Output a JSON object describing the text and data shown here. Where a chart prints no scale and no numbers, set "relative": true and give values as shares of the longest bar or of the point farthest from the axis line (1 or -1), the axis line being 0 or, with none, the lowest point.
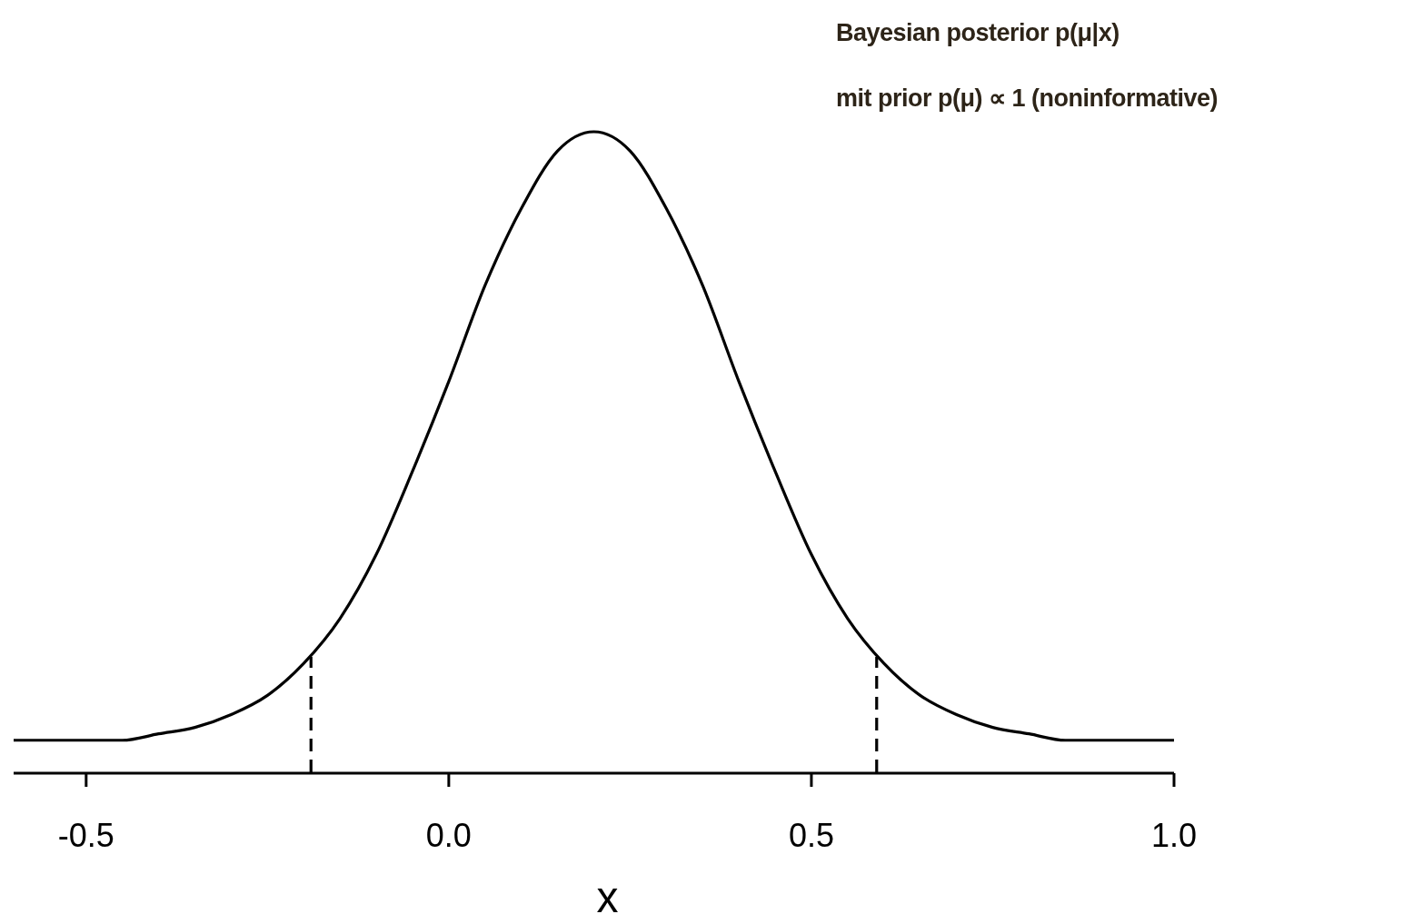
{
  "chart_data": {
    "type": "line",
    "relative": true,
    "xlabel": "x",
    "annotations": [
      "Bayesian posterior p(μ|x)",
      "mit prior p(μ) ∝ 1 (noninformative)"
    ],
    "xlim": [
      -0.6,
      1.0
    ],
    "xticks": [
      {
        "value": -0.5,
        "label": "-0.5"
      },
      {
        "value": 0,
        "label": "0.0"
      },
      {
        "value": 0.5,
        "label": "0.5"
      },
      {
        "value": 1,
        "label": "1.0"
      }
    ],
    "grid": false,
    "marker": "none",
    "series": [
      {
        "color": "#000000",
        "line_style": "solid",
        "x": [
          -0.6,
          -0.55,
          -0.5,
          -0.45,
          -0.4,
          -0.35,
          -0.3,
          -0.25,
          -0.2,
          -0.15,
          -0.1,
          -0.05,
          0,
          0.05,
          0.1,
          0.15,
          0.2,
          0.25,
          0.3,
          0.35,
          0.4,
          0.45,
          0.5,
          0.55,
          0.6,
          0.65,
          0.7,
          0.75,
          0.8,
          0.85,
          0.9,
          0.95,
          1.0
        ],
        "values": [
          0.05,
          0.05,
          0.05,
          0.05,
          0.06,
          0.07,
          0.09,
          0.12,
          0.17,
          0.24,
          0.34,
          0.47,
          0.61,
          0.76,
          0.88,
          0.97,
          1.0,
          0.97,
          0.88,
          0.76,
          0.61,
          0.47,
          0.34,
          0.24,
          0.17,
          0.12,
          0.09,
          0.07,
          0.06,
          0.05,
          0.05,
          0.05,
          0.05
        ]
      },
      {
        "color": "#000000",
        "line_style": "dashed",
        "x": [
          -0.19,
          -0.19
        ],
        "values": [
          0,
          0.18
        ]
      },
      {
        "color": "#000000",
        "line_style": "dashed",
        "x": [
          0.59,
          0.59
        ],
        "values": [
          0,
          0.18
        ]
      }
    ]
  }
}
